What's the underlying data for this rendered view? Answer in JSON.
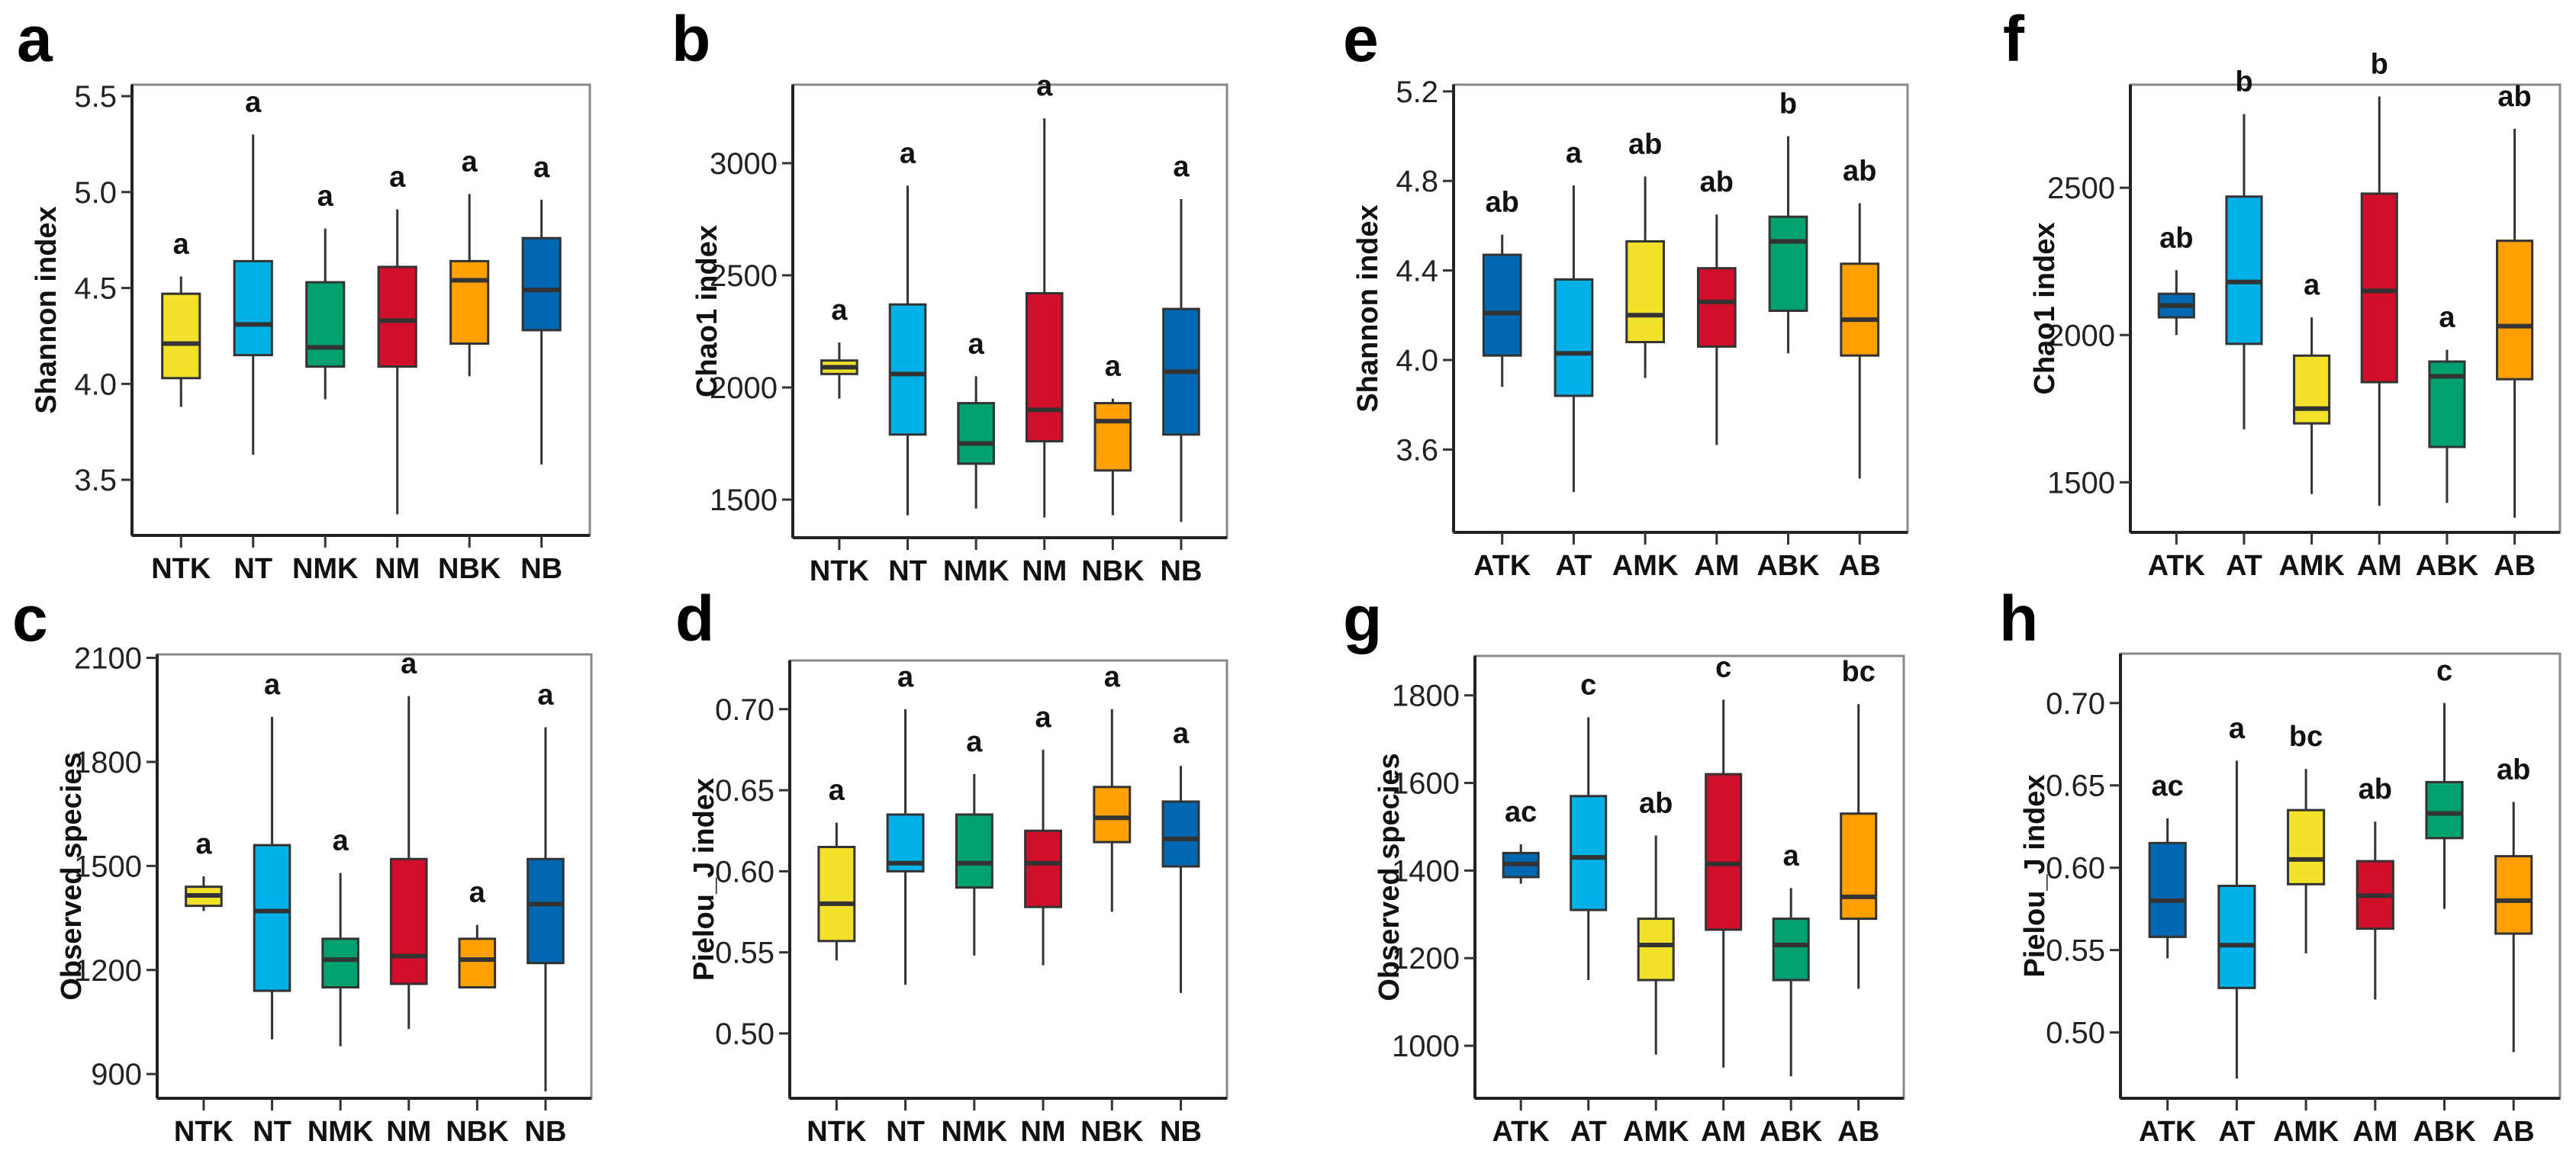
{
  "colors": {
    "yellow": "#f2e12a",
    "lightblue": "#00b0e8",
    "green": "#00a070",
    "red": "#d0102a",
    "orange": "#ffa000",
    "blue": "#0068b0"
  },
  "chart_data": [
    {
      "panel": "a",
      "type": "box",
      "ylabel": "Shannon index",
      "ylim": [
        3.21,
        5.56
      ],
      "yticks": [
        "3.5",
        "4.0",
        "4.5",
        "5.0",
        "5.5"
      ],
      "categories": [
        "NTK",
        "NT",
        "NMK",
        "NM",
        "NBK",
        "NB"
      ],
      "colors": [
        "#f2e12a",
        "#00b0e8",
        "#00a070",
        "#d0102a",
        "#ffa000",
        "#0068b0"
      ],
      "letters": [
        "a",
        "a",
        "a",
        "a",
        "a",
        "a"
      ],
      "boxes": [
        [
          3.88,
          4.03,
          4.21,
          4.47,
          4.56
        ],
        [
          3.63,
          4.15,
          4.31,
          4.64,
          5.3
        ],
        [
          3.92,
          4.09,
          4.19,
          4.53,
          4.81
        ],
        [
          3.32,
          4.09,
          4.33,
          4.61,
          4.91
        ],
        [
          4.04,
          4.21,
          4.54,
          4.64,
          4.99
        ],
        [
          3.58,
          4.28,
          4.49,
          4.76,
          4.96
        ]
      ]
    },
    {
      "panel": "b",
      "type": "box",
      "ylabel": "Chao1 index",
      "ylim": [
        1330,
        3350
      ],
      "yticks": [
        "1500",
        "2000",
        "2500",
        "3000"
      ],
      "categories": [
        "NTK",
        "NT",
        "NMK",
        "NM",
        "NBK",
        "NB"
      ],
      "colors": [
        "#f2e12a",
        "#00b0e8",
        "#00a070",
        "#d0102a",
        "#ffa000",
        "#0068b0"
      ],
      "letters": [
        "a",
        "a",
        "a",
        "a",
        "a",
        "a"
      ],
      "boxes": [
        [
          1950,
          2060,
          2090,
          2120,
          2200
        ],
        [
          1430,
          1790,
          2060,
          2370,
          2900
        ],
        [
          1460,
          1660,
          1750,
          1930,
          2050
        ],
        [
          1420,
          1760,
          1900,
          2420,
          3200
        ],
        [
          1430,
          1630,
          1850,
          1930,
          1950
        ],
        [
          1400,
          1790,
          2070,
          2350,
          2840
        ]
      ]
    },
    {
      "panel": "c",
      "type": "box",
      "ylabel": "Observed species",
      "ylim": [
        830,
        2110
      ],
      "yticks": [
        "900",
        "1200",
        "1500",
        "1800",
        "2100"
      ],
      "categories": [
        "NTK",
        "NT",
        "NMK",
        "NM",
        "NBK",
        "NB"
      ],
      "colors": [
        "#f2e12a",
        "#00b0e8",
        "#00a070",
        "#d0102a",
        "#ffa000",
        "#0068b0"
      ],
      "letters": [
        "a",
        "a",
        "a",
        "a",
        "a",
        "a"
      ],
      "boxes": [
        [
          1370,
          1385,
          1415,
          1440,
          1470
        ],
        [
          1000,
          1140,
          1370,
          1560,
          1930
        ],
        [
          980,
          1150,
          1230,
          1290,
          1480
        ],
        [
          1030,
          1160,
          1240,
          1520,
          1990
        ],
        [
          1150,
          1150,
          1230,
          1290,
          1330
        ],
        [
          850,
          1220,
          1390,
          1520,
          1900
        ]
      ]
    },
    {
      "panel": "d",
      "type": "box",
      "ylabel": "Pielou_J index",
      "ylim": [
        0.46,
        0.73
      ],
      "yticks": [
        "0.50",
        "0.55",
        "0.60",
        "0.65",
        "0.70"
      ],
      "categories": [
        "NTK",
        "NT",
        "NMK",
        "NM",
        "NBK",
        "NB"
      ],
      "colors": [
        "#f2e12a",
        "#00b0e8",
        "#00a070",
        "#d0102a",
        "#ffa000",
        "#0068b0"
      ],
      "letters": [
        "a",
        "a",
        "a",
        "a",
        "a",
        "a"
      ],
      "boxes": [
        [
          0.545,
          0.557,
          0.58,
          0.615,
          0.63
        ],
        [
          0.53,
          0.6,
          0.605,
          0.635,
          0.7
        ],
        [
          0.548,
          0.59,
          0.605,
          0.635,
          0.66
        ],
        [
          0.542,
          0.578,
          0.605,
          0.625,
          0.675
        ],
        [
          0.575,
          0.618,
          0.633,
          0.652,
          0.7
        ],
        [
          0.525,
          0.603,
          0.62,
          0.643,
          0.665
        ]
      ]
    },
    {
      "panel": "e",
      "type": "box",
      "ylabel": "Shannon index",
      "ylim": [
        3.23,
        5.23
      ],
      "yticks": [
        "3.6",
        "4.0",
        "4.4",
        "4.8",
        "5.2"
      ],
      "categories": [
        "ATK",
        "AT",
        "AMK",
        "AM",
        "ABK",
        "AB"
      ],
      "colors": [
        "#0068b0",
        "#00b0e8",
        "#f2e12a",
        "#d0102a",
        "#00a070",
        "#ffa000"
      ],
      "letters": [
        "ab",
        "a",
        "ab",
        "ab",
        "b",
        "ab"
      ],
      "boxes": [
        [
          3.88,
          4.02,
          4.21,
          4.47,
          4.56
        ],
        [
          3.41,
          3.84,
          4.03,
          4.36,
          4.78
        ],
        [
          3.92,
          4.08,
          4.2,
          4.53,
          4.82
        ],
        [
          3.62,
          4.06,
          4.26,
          4.41,
          4.65
        ],
        [
          4.03,
          4.22,
          4.53,
          4.64,
          5.0
        ],
        [
          3.47,
          4.02,
          4.18,
          4.43,
          4.7
        ]
      ]
    },
    {
      "panel": "f",
      "type": "box",
      "ylabel": "Chao1 index",
      "ylim": [
        1330,
        2850
      ],
      "yticks": [
        "1500",
        "2000",
        "2500"
      ],
      "categories": [
        "ATK",
        "AT",
        "AMK",
        "AM",
        "ABK",
        "AB"
      ],
      "colors": [
        "#0068b0",
        "#00b0e8",
        "#f2e12a",
        "#d0102a",
        "#00a070",
        "#ffa000"
      ],
      "letters": [
        "ab",
        "b",
        "a",
        "b",
        "a",
        "ab"
      ],
      "boxes": [
        [
          2000,
          2060,
          2100,
          2140,
          2220
        ],
        [
          1680,
          1970,
          2180,
          2470,
          2750
        ],
        [
          1460,
          1700,
          1750,
          1930,
          2060
        ],
        [
          1420,
          1840,
          2150,
          2480,
          2810
        ],
        [
          1430,
          1620,
          1860,
          1910,
          1950
        ],
        [
          1380,
          1850,
          2030,
          2320,
          2700
        ]
      ]
    },
    {
      "panel": "g",
      "type": "box",
      "ylabel": "Observed species",
      "ylim": [
        880,
        1890
      ],
      "yticks": [
        "1000",
        "1200",
        "1400",
        "1600",
        "1800"
      ],
      "categories": [
        "ATK",
        "AT",
        "AMK",
        "AM",
        "ABK",
        "AB"
      ],
      "colors": [
        "#0068b0",
        "#00b0e8",
        "#f2e12a",
        "#d0102a",
        "#00a070",
        "#ffa000"
      ],
      "letters": [
        "ac",
        "c",
        "ab",
        "c",
        "a",
        "bc"
      ],
      "boxes": [
        [
          1370,
          1385,
          1415,
          1440,
          1460
        ],
        [
          1150,
          1310,
          1430,
          1570,
          1750
        ],
        [
          980,
          1150,
          1230,
          1290,
          1480
        ],
        [
          950,
          1265,
          1415,
          1620,
          1790
        ],
        [
          930,
          1150,
          1230,
          1290,
          1360
        ],
        [
          1130,
          1290,
          1340,
          1530,
          1780
        ]
      ]
    },
    {
      "panel": "h",
      "type": "box",
      "ylabel": "Pielou_J index",
      "ylim": [
        0.46,
        0.73
      ],
      "yticks": [
        "0.50",
        "0.55",
        "0.60",
        "0.65",
        "0.70"
      ],
      "categories": [
        "ATK",
        "AT",
        "AMK",
        "AM",
        "ABK",
        "AB"
      ],
      "colors": [
        "#0068b0",
        "#00b0e8",
        "#f2e12a",
        "#d0102a",
        "#00a070",
        "#ffa000"
      ],
      "letters": [
        "ac",
        "a",
        "bc",
        "ab",
        "c",
        "ab"
      ],
      "boxes": [
        [
          0.545,
          0.558,
          0.58,
          0.615,
          0.63
        ],
        [
          0.472,
          0.527,
          0.553,
          0.589,
          0.665
        ],
        [
          0.548,
          0.59,
          0.605,
          0.635,
          0.66
        ],
        [
          0.52,
          0.563,
          0.583,
          0.604,
          0.628
        ],
        [
          0.575,
          0.618,
          0.633,
          0.652,
          0.7
        ],
        [
          0.488,
          0.56,
          0.58,
          0.607,
          0.64
        ]
      ]
    }
  ]
}
